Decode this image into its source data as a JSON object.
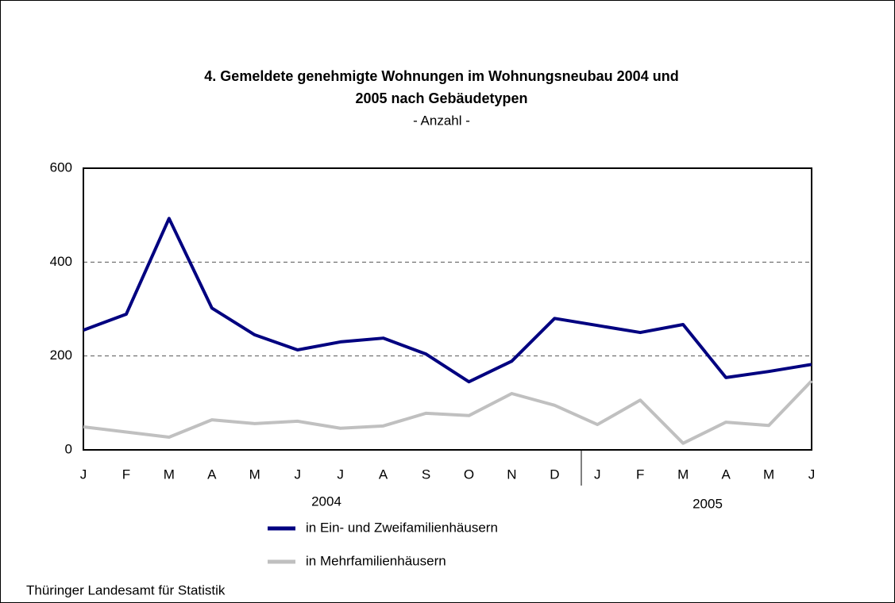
{
  "chart_data": {
    "type": "line",
    "title": [
      "4. Gemeldete genehmigte Wohnungen im Wohnungsneubau 2004 und",
      "2005 nach Gebäudetypen"
    ],
    "subtitle": "- Anzahl -",
    "categories": [
      "J",
      "F",
      "M",
      "A",
      "M",
      "J",
      "J",
      "A",
      "S",
      "O",
      "N",
      "D",
      "J",
      "F",
      "M",
      "A",
      "M",
      "J"
    ],
    "year_labels": [
      "2004",
      "2005"
    ],
    "series": [
      {
        "name": "in Ein- und Zweifamilienhäusern",
        "color": "#000080",
        "values": [
          255,
          289,
          493,
          302,
          245,
          213,
          230,
          238,
          204,
          145,
          189,
          280,
          265,
          250,
          267,
          154,
          167,
          182
        ]
      },
      {
        "name": "in Mehrfamilienhäusern",
        "color": "#c0c0c0",
        "values": [
          49,
          38,
          27,
          64,
          56,
          61,
          46,
          51,
          78,
          73,
          120,
          95,
          54,
          106,
          14,
          59,
          52,
          147
        ]
      }
    ],
    "ylim": [
      0,
      600
    ],
    "yticks": [
      0,
      200,
      400,
      600
    ],
    "grid": true,
    "source": "Thüringer Landesamt für Statistik"
  }
}
